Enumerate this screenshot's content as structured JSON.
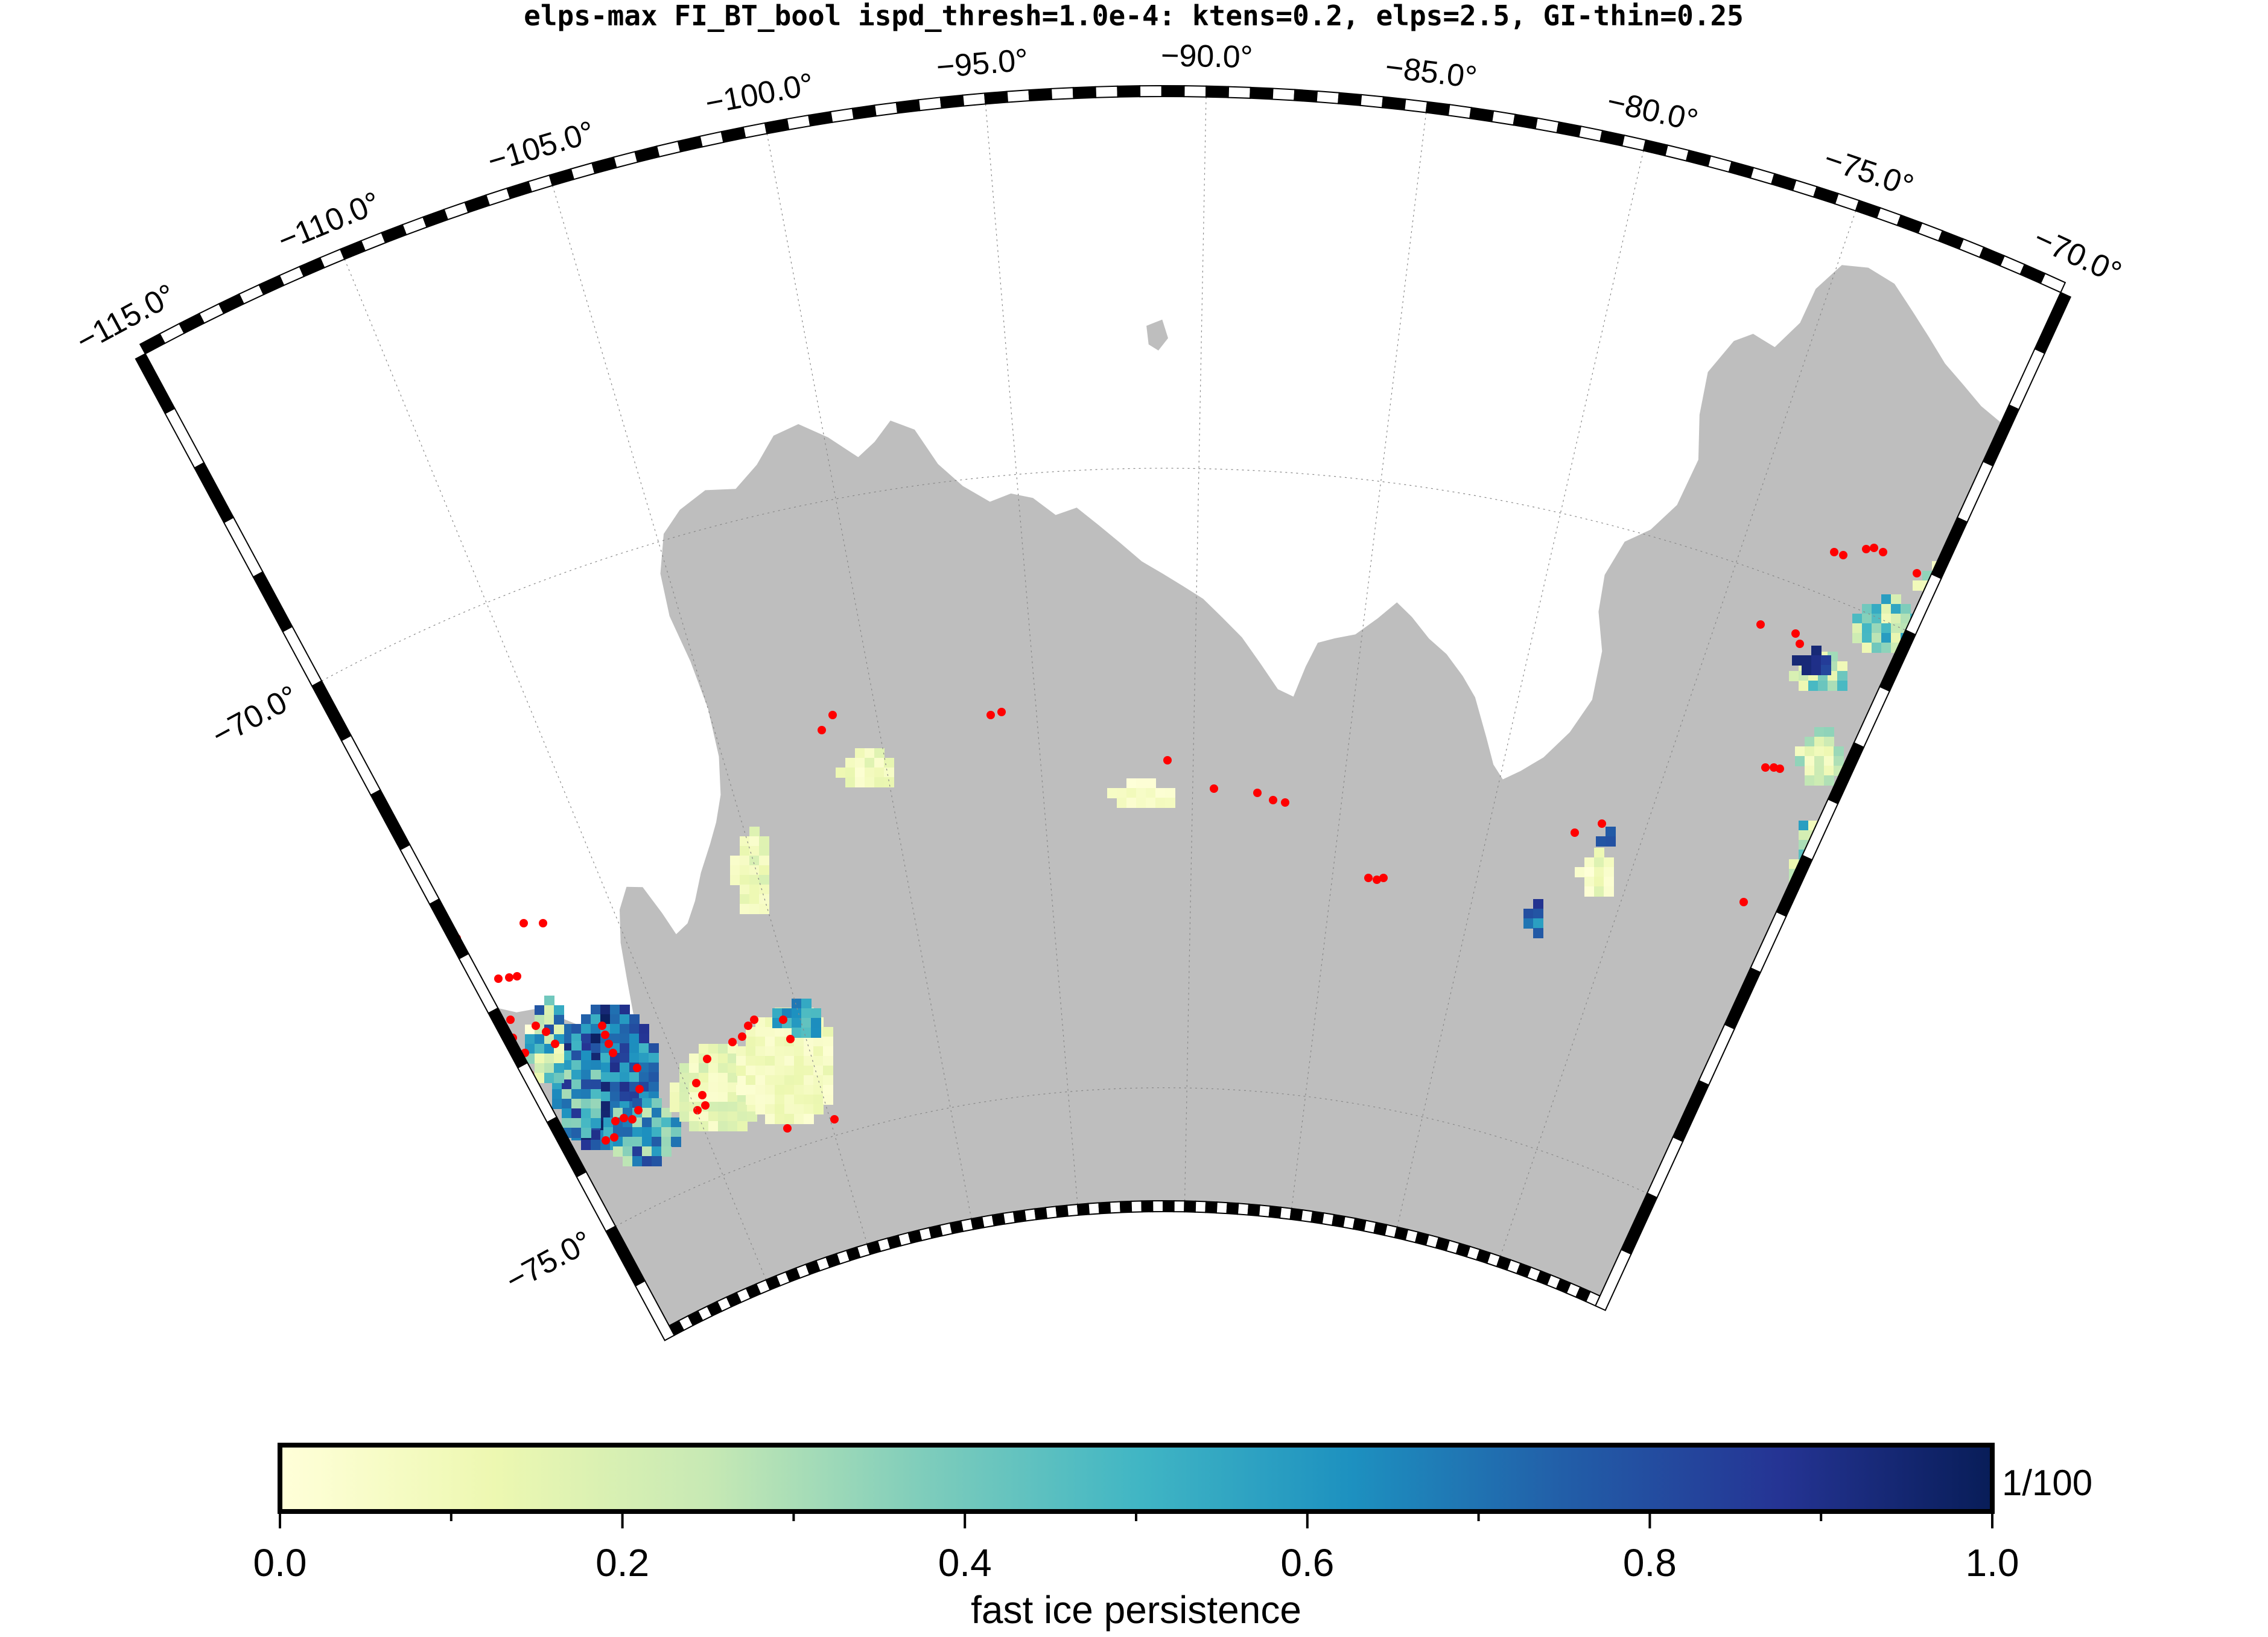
{
  "title": "elps-max FI_BT_bool ispd_thresh=1.0e-4: ktens=0.2, elps=2.5, GI-thin=0.25",
  "map": {
    "projection": "polar-stereographic-sector",
    "lon_range": [
      -115,
      -70
    ],
    "lat_range": [
      -76,
      -67
    ],
    "lon_labels": [
      "−115.0°",
      "−110.0°",
      "−105.0°",
      "−100.0°",
      "−95.0°",
      "−90.0°",
      "−85.0°",
      "−80.0°",
      "−75.0°",
      "−70.0°"
    ],
    "lat_labels": [
      "−70.0°",
      "−75.0°"
    ],
    "land_color": "#bebebe",
    "ocean_color": "#ffffff",
    "grounded_iceberg_marker_color": "#ff0000"
  },
  "colorbar": {
    "label": "fast ice persistence",
    "unit": "1/100",
    "ticks": [
      "0.0",
      "0.2",
      "0.4",
      "0.6",
      "0.8",
      "1.0"
    ],
    "range": [
      0,
      1
    ],
    "colormap": "YlGnBu",
    "stops": [
      "#ffffd9",
      "#edf8b1",
      "#c7e9b4",
      "#7fcdbb",
      "#41b6c4",
      "#1d91c0",
      "#225ea8",
      "#253494",
      "#081d58"
    ]
  }
}
